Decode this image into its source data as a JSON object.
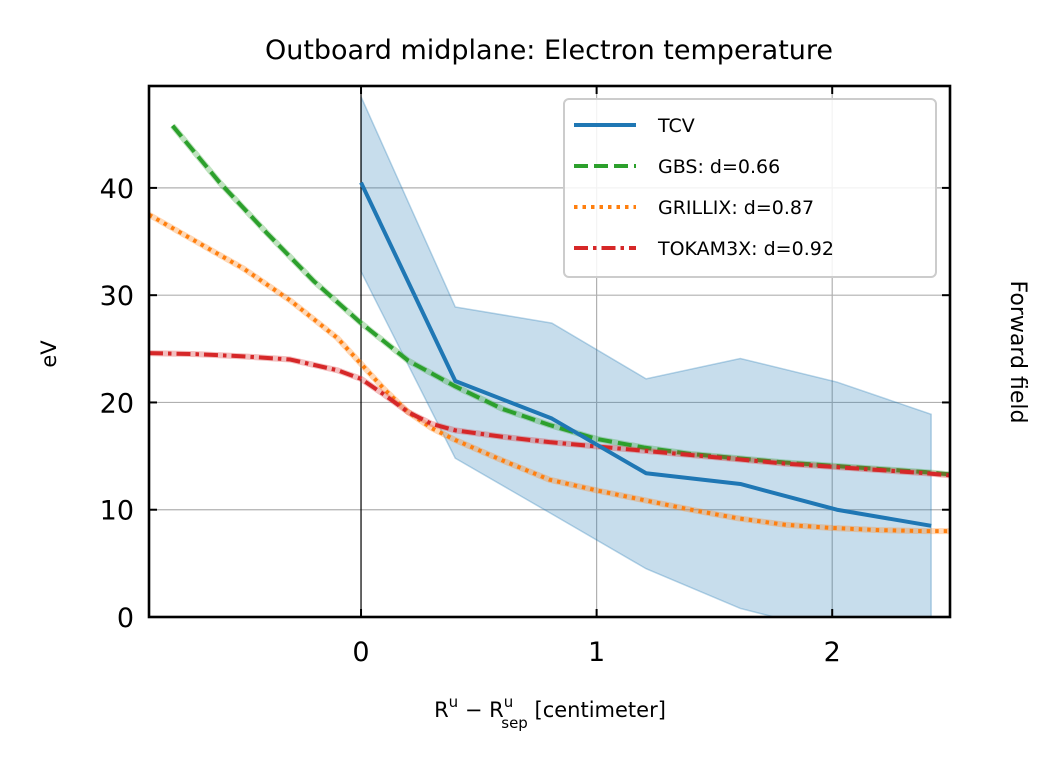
{
  "chart_data": {
    "type": "line",
    "title": "Outboard midplane: Electron temperature",
    "xlabel": {
      "base": "R",
      "sup1": "u",
      "minus": " − ",
      "base2": "R",
      "sup2": "u",
      "sub2": "sep",
      "unit": " [centimeter]"
    },
    "ylabel": "eV",
    "side_label": "Forward field",
    "xlim": [
      -0.9,
      2.5
    ],
    "ylim": [
      0,
      49.5
    ],
    "xticks": [
      0,
      1,
      2
    ],
    "xtick_labels": [
      "0",
      "1",
      "2"
    ],
    "yticks": [
      0,
      10,
      20,
      30,
      40
    ],
    "ytick_labels": [
      "0",
      "10",
      "20",
      "30",
      "40"
    ],
    "grid": true,
    "separatrix_x": 0,
    "legend_position": "upper right",
    "series": [
      {
        "name": "TCV",
        "color": "#1f77b4",
        "style": "solid",
        "x": [
          0,
          0.4,
          0.81,
          1.21,
          1.61,
          2.02,
          2.42
        ],
        "y": [
          40.5,
          22,
          18.5,
          13.4,
          12.4,
          10,
          8.5
        ],
        "band_upper": [
          48.5,
          28.9,
          27.4,
          22.2,
          24.1,
          21.9,
          18.9
        ],
        "band_lower": [
          32.2,
          14.8,
          9.6,
          4.5,
          0.8,
          -1.5,
          -1.5
        ]
      },
      {
        "name": "GBS: d=0.66",
        "color": "#2ca02c",
        "style": "dashed",
        "x": [
          -0.8,
          -0.6,
          -0.4,
          -0.2,
          0,
          0.2,
          0.4,
          0.6,
          0.8,
          1.0,
          1.2,
          1.4,
          1.6,
          1.8,
          2.0,
          2.2,
          2.4,
          2.5
        ],
        "y": [
          45.8,
          40.5,
          35.8,
          31.3,
          27.4,
          23.9,
          21.5,
          19.4,
          17.9,
          16.6,
          15.8,
          15.2,
          14.8,
          14.4,
          14.1,
          13.8,
          13.5,
          13.3
        ]
      },
      {
        "name": "GRILLIX: d=0.87",
        "color": "#ff7f0e",
        "style": "dotted",
        "x": [
          -0.9,
          -0.7,
          -0.5,
          -0.3,
          -0.1,
          0,
          0.1,
          0.2,
          0.3,
          0.4,
          0.6,
          0.8,
          1.0,
          1.2,
          1.4,
          1.6,
          1.8,
          2.0,
          2.2,
          2.4,
          2.5
        ],
        "y": [
          37.5,
          35,
          32.5,
          29.5,
          26,
          23.6,
          21.2,
          19.1,
          17.6,
          16.5,
          14.6,
          12.8,
          11.8,
          10.9,
          10,
          9.2,
          8.6,
          8.3,
          8.1,
          8.0,
          8.0
        ]
      },
      {
        "name": "TOKAM3X: d=0.92",
        "color": "#d62728",
        "style": "dashdot",
        "x": [
          -0.9,
          -0.7,
          -0.5,
          -0.3,
          -0.1,
          0,
          0.1,
          0.2,
          0.3,
          0.4,
          0.6,
          0.8,
          1.0,
          1.2,
          1.4,
          1.6,
          1.8,
          2.0,
          2.2,
          2.4,
          2.5
        ],
        "y": [
          24.6,
          24.5,
          24.3,
          24.0,
          23.0,
          22.2,
          20.7,
          19.1,
          18.0,
          17.4,
          16.8,
          16.3,
          15.9,
          15.5,
          15.1,
          14.7,
          14.3,
          14.0,
          13.7,
          13.4,
          13.2
        ]
      }
    ]
  }
}
